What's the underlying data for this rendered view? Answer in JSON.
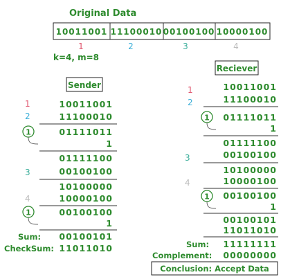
{
  "title": "Original Data",
  "data_cells": [
    {
      "bits": "10011001",
      "index": "1",
      "color": "#e0566f"
    },
    {
      "bits": "11100010",
      "index": "2",
      "color": "#3aaed8"
    },
    {
      "bits": "00100100",
      "index": "3",
      "color": "#3aae9a"
    },
    {
      "bits": "10000100",
      "index": "4",
      "color": "#bdbdbd"
    }
  ],
  "params": "k=4, m=8",
  "sender": {
    "title": "Sender",
    "rows": [
      {
        "index": "1",
        "bits": "10011001"
      },
      {
        "index": "2",
        "bits": "11100010"
      },
      {
        "carry": "1",
        "bits": "01111011"
      },
      {
        "bits": "1"
      },
      {
        "bits": "01111100"
      },
      {
        "index": "3",
        "bits": "00100100"
      },
      {
        "bits": "10100000"
      },
      {
        "index": "4",
        "bits": "10000100"
      },
      {
        "carry": "1",
        "bits": "00100100"
      },
      {
        "bits": "1"
      }
    ],
    "sum_label": "Sum:",
    "sum_bits": "00100101",
    "checksum_label": "CheckSum:",
    "checksum_bits": "11011010"
  },
  "receiver": {
    "title": "Reciever",
    "rows": [
      {
        "index": "1",
        "bits": "10011001"
      },
      {
        "index": "2",
        "bits": "11100010"
      },
      {
        "carry": "1",
        "bits": "01111011"
      },
      {
        "bits": "1"
      },
      {
        "bits": "01111100"
      },
      {
        "index": "3",
        "bits": "00100100"
      },
      {
        "bits": "10100000"
      },
      {
        "index": "4",
        "bits": "10000100"
      },
      {
        "carry": "1",
        "bits": "00100100"
      },
      {
        "bits": "1"
      },
      {
        "bits": "00100101"
      },
      {
        "bits": "11011010"
      }
    ],
    "sum_label": "Sum:",
    "sum_bits": "11111111",
    "complement_label": "Complement:",
    "complement_bits": "00000000",
    "conclusion": "Conclusion: Accept Data"
  },
  "colors": {
    "text": "#2e8b2e",
    "index_1": "#e0566f",
    "index_2": "#3aaed8",
    "index_3": "#3aae9a",
    "index_4": "#bdbdbd"
  }
}
